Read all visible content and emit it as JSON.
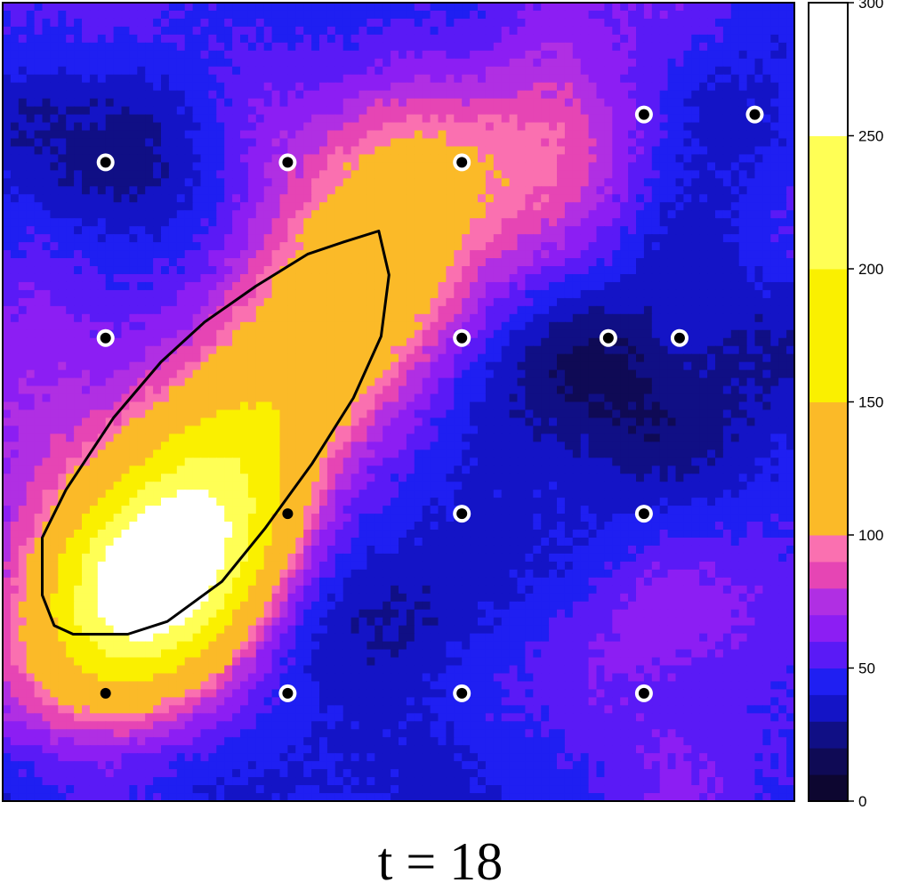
{
  "chart_data": {
    "type": "heatmap",
    "caption": "t = 18",
    "colorbar": {
      "range": [
        0,
        300
      ],
      "tick_labels": [
        "0",
        "50",
        "100",
        "150",
        "200",
        "250",
        "300"
      ],
      "ticks": [
        0,
        50,
        100,
        150,
        200,
        250,
        300
      ],
      "bins": [
        {
          "from": 0,
          "to": 10,
          "color": "#0d0630"
        },
        {
          "from": 10,
          "to": 20,
          "color": "#0f0a55"
        },
        {
          "from": 20,
          "to": 30,
          "color": "#100f85"
        },
        {
          "from": 30,
          "to": 40,
          "color": "#1414c6"
        },
        {
          "from": 40,
          "to": 50,
          "color": "#1f1ff2"
        },
        {
          "from": 50,
          "to": 60,
          "color": "#5a1af6"
        },
        {
          "from": 60,
          "to": 70,
          "color": "#8c1ef3"
        },
        {
          "from": 70,
          "to": 80,
          "color": "#b02fe3"
        },
        {
          "from": 80,
          "to": 90,
          "color": "#e645b4"
        },
        {
          "from": 90,
          "to": 100,
          "color": "#fa70b0"
        },
        {
          "from": 100,
          "to": 150,
          "color": "#fbba28"
        },
        {
          "from": 150,
          "to": 200,
          "color": "#faf000"
        },
        {
          "from": 200,
          "to": 250,
          "color": "#ffff55"
        },
        {
          "from": 250,
          "to": 300,
          "color": "#ffffff"
        }
      ]
    },
    "field": {
      "background": 50,
      "hotspots": [
        {
          "cx": 0.2,
          "cy": 0.28,
          "sx": 0.1,
          "sy": 0.07,
          "angle": 48,
          "amp": 250
        },
        {
          "cx": 0.32,
          "cy": 0.48,
          "sx": 0.22,
          "sy": 0.09,
          "angle": 48,
          "amp": 90
        },
        {
          "cx": 0.48,
          "cy": 0.72,
          "sx": 0.12,
          "sy": 0.12,
          "angle": 0,
          "amp": 40
        },
        {
          "cx": 0.62,
          "cy": 0.82,
          "sx": 0.18,
          "sy": 0.08,
          "angle": 0,
          "amp": 25
        },
        {
          "cx": 0.05,
          "cy": 0.52,
          "sx": 0.08,
          "sy": 0.15,
          "angle": 0,
          "amp": 20
        },
        {
          "cx": 0.82,
          "cy": 0.2,
          "sx": 0.12,
          "sy": 0.1,
          "angle": 0,
          "amp": 20
        },
        {
          "cx": 0.15,
          "cy": 0.83,
          "sx": 0.1,
          "sy": 0.07,
          "angle": 0,
          "amp": -30
        },
        {
          "cx": 0.78,
          "cy": 0.5,
          "sx": 0.15,
          "sy": 0.12,
          "angle": 0,
          "amp": -35
        },
        {
          "cx": 0.47,
          "cy": 0.18,
          "sx": 0.12,
          "sy": 0.1,
          "angle": 0,
          "amp": -25
        },
        {
          "cx": 0.9,
          "cy": 0.85,
          "sx": 0.08,
          "sy": 0.08,
          "angle": 0,
          "amp": -20
        }
      ]
    },
    "contour": {
      "points": [
        [
          0.475,
          0.714
        ],
        [
          0.488,
          0.659
        ],
        [
          0.478,
          0.582
        ],
        [
          0.443,
          0.505
        ],
        [
          0.391,
          0.423
        ],
        [
          0.331,
          0.341
        ],
        [
          0.277,
          0.275
        ],
        [
          0.208,
          0.225
        ],
        [
          0.158,
          0.209
        ],
        [
          0.089,
          0.209
        ],
        [
          0.065,
          0.22
        ],
        [
          0.05,
          0.258
        ],
        [
          0.05,
          0.33
        ],
        [
          0.08,
          0.39
        ],
        [
          0.14,
          0.48
        ],
        [
          0.2,
          0.55
        ],
        [
          0.255,
          0.6
        ],
        [
          0.32,
          0.645
        ],
        [
          0.385,
          0.685
        ],
        [
          0.43,
          0.7
        ]
      ]
    },
    "sites": [
      {
        "x": 0.13,
        "y": 0.8,
        "ring": "white"
      },
      {
        "x": 0.36,
        "y": 0.8,
        "ring": "white"
      },
      {
        "x": 0.58,
        "y": 0.8,
        "ring": "white"
      },
      {
        "x": 0.81,
        "y": 0.86,
        "ring": "white"
      },
      {
        "x": 0.95,
        "y": 0.86,
        "ring": "white"
      },
      {
        "x": 0.13,
        "y": 0.58,
        "ring": "white"
      },
      {
        "x": 0.58,
        "y": 0.58,
        "ring": "white"
      },
      {
        "x": 0.765,
        "y": 0.58,
        "ring": "white"
      },
      {
        "x": 0.855,
        "y": 0.58,
        "ring": "white"
      },
      {
        "x": 0.36,
        "y": 0.36,
        "ring": "none"
      },
      {
        "x": 0.58,
        "y": 0.36,
        "ring": "white"
      },
      {
        "x": 0.81,
        "y": 0.36,
        "ring": "white"
      },
      {
        "x": 0.36,
        "y": 0.135,
        "ring": "white"
      },
      {
        "x": 0.58,
        "y": 0.135,
        "ring": "white"
      },
      {
        "x": 0.81,
        "y": 0.135,
        "ring": "white"
      },
      {
        "x": 0.13,
        "y": 0.135,
        "ring": "none"
      }
    ]
  }
}
